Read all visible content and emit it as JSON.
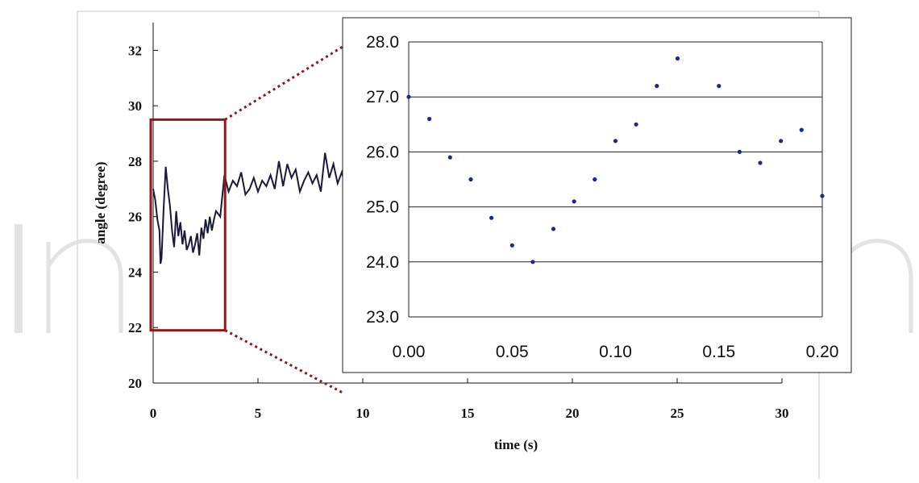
{
  "chart_data": [
    {
      "type": "line",
      "xlabel": "time (s)",
      "ylabel": "angle (degree)",
      "xlim": [
        0,
        30
      ],
      "ylim": [
        20,
        33
      ],
      "xticks": [
        "0",
        "5",
        "10",
        "15",
        "20",
        "25",
        "30"
      ],
      "yticks": [
        "20",
        "22",
        "24",
        "26",
        "28",
        "30",
        "32"
      ],
      "x": [
        0.0,
        0.1,
        0.2,
        0.3,
        0.35,
        0.4,
        0.5,
        0.6,
        0.7,
        0.8,
        0.9,
        1.0,
        1.1,
        1.2,
        1.3,
        1.4,
        1.5,
        1.6,
        1.7,
        1.8,
        1.9,
        2.0,
        2.1,
        2.2,
        2.3,
        2.4,
        2.5,
        2.6,
        2.7,
        2.8,
        2.9,
        3.0,
        3.2,
        3.4,
        3.6,
        3.8,
        4.0,
        4.2,
        4.4,
        4.6,
        4.8,
        5.0,
        5.2,
        5.4,
        5.6,
        5.8,
        6.0,
        6.2,
        6.4,
        6.6,
        6.8,
        7.0,
        7.2,
        7.4,
        7.6,
        7.8,
        8.0,
        8.2,
        8.4,
        8.6,
        8.8,
        9.0,
        9.2
      ],
      "y": [
        27.0,
        26.6,
        25.9,
        25.5,
        24.3,
        24.5,
        26.3,
        27.8,
        27.0,
        26.4,
        25.5,
        24.9,
        26.2,
        25.3,
        25.8,
        25.0,
        25.5,
        24.8,
        25.0,
        25.3,
        24.7,
        25.0,
        25.4,
        24.6,
        25.6,
        25.2,
        25.9,
        25.4,
        26.0,
        25.5,
        25.9,
        26.2,
        26.0,
        27.5,
        26.9,
        27.3,
        27.1,
        27.6,
        26.8,
        27.0,
        27.4,
        26.9,
        27.3,
        27.1,
        27.5,
        27.0,
        28.0,
        27.1,
        27.9,
        27.4,
        27.7,
        26.9,
        27.3,
        27.6,
        27.2,
        27.5,
        26.9,
        28.3,
        27.4,
        27.9,
        27.2,
        27.6,
        27.0
      ],
      "highlight_range": {
        "x": [
          0,
          3.2
        ],
        "y": [
          21.9,
          29.5
        ]
      },
      "grid": false
    },
    {
      "type": "scatter",
      "xticks": [
        "0.00",
        "0.05",
        "0.10",
        "0.15",
        "0.20"
      ],
      "yticks": [
        "23.0",
        "24.0",
        "25.0",
        "26.0",
        "27.0",
        "28.0"
      ],
      "xlim": [
        0,
        0.2
      ],
      "ylim": [
        23.0,
        28.0
      ],
      "x": [
        0.0,
        0.01,
        0.02,
        0.03,
        0.04,
        0.05,
        0.06,
        0.07,
        0.08,
        0.09,
        0.1,
        0.11,
        0.12,
        0.13,
        0.15,
        0.16,
        0.17,
        0.18,
        0.19,
        0.2
      ],
      "y": [
        27.0,
        26.6,
        25.9,
        25.5,
        24.8,
        24.3,
        24.0,
        24.6,
        25.1,
        25.5,
        26.2,
        26.5,
        27.2,
        27.7,
        27.2,
        26.0,
        25.8,
        26.2,
        26.4,
        25.2
      ],
      "grid": "horizontal"
    }
  ],
  "colors": {
    "line": "#1a1a3a",
    "highlight_box": "#8b1a1a",
    "zoom_connector": "#8b1a1a",
    "scatter_point": "#1a2a8c",
    "watermark": "#e3e3e3"
  },
  "icons": {
    "watermark": "intechopen-watermark"
  }
}
